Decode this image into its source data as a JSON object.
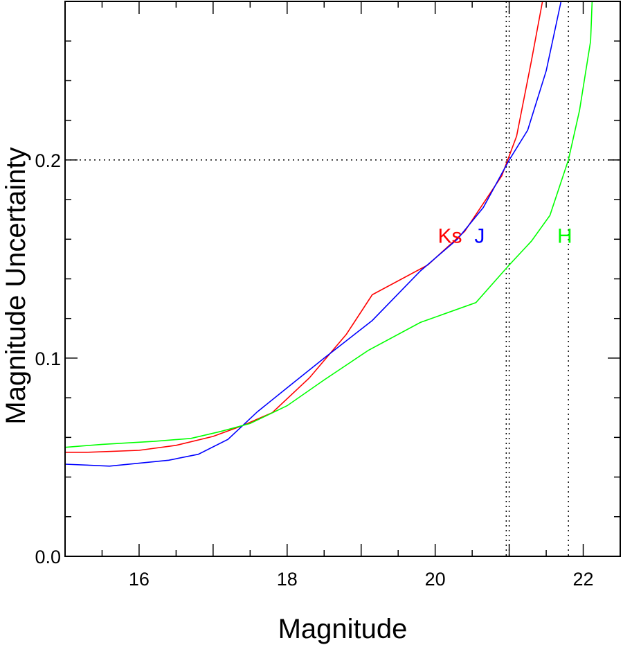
{
  "chart_data": {
    "type": "line",
    "title": "",
    "xlabel": "Magnitude",
    "ylabel": "Magnitude Uncertainty",
    "xlim": [
      15.0,
      22.5
    ],
    "ylim": [
      0.0,
      0.28
    ],
    "grid": false,
    "x_ticks_major": [
      16,
      17,
      18,
      19,
      20,
      21,
      22
    ],
    "x_tick_labels": [
      "16",
      "",
      "18",
      "",
      "20",
      "",
      "22"
    ],
    "x_ticks_minor_step": 0.5,
    "y_ticks_major": [
      0.0,
      0.1,
      0.2
    ],
    "y_tick_labels": [
      "0.0",
      "0.1",
      "0.2"
    ],
    "y_ticks_minor_step": 0.02,
    "series": [
      {
        "name": "Ks",
        "color": "#ff0000",
        "label_at": [
          20.2,
          0.162
        ],
        "points": [
          [
            15.0,
            0.0525
          ],
          [
            15.3,
            0.0525
          ],
          [
            16.0,
            0.0535
          ],
          [
            16.5,
            0.056
          ],
          [
            17.0,
            0.0605
          ],
          [
            17.4,
            0.066
          ],
          [
            17.8,
            0.0725
          ],
          [
            18.3,
            0.09
          ],
          [
            18.8,
            0.112
          ],
          [
            19.15,
            0.132
          ],
          [
            19.9,
            0.147
          ],
          [
            20.4,
            0.164
          ],
          [
            20.9,
            0.192
          ],
          [
            21.1,
            0.212
          ],
          [
            21.3,
            0.25
          ],
          [
            21.45,
            0.28
          ]
        ]
      },
      {
        "name": "J",
        "color": "#0000ff",
        "label_at": [
          20.6,
          0.162
        ],
        "points": [
          [
            15.0,
            0.0465
          ],
          [
            15.6,
            0.0455
          ],
          [
            16.4,
            0.0485
          ],
          [
            16.8,
            0.0515
          ],
          [
            17.2,
            0.059
          ],
          [
            17.6,
            0.073
          ],
          [
            18.0,
            0.085
          ],
          [
            18.5,
            0.1
          ],
          [
            19.15,
            0.119
          ],
          [
            19.8,
            0.144
          ],
          [
            20.3,
            0.16
          ],
          [
            20.65,
            0.176
          ],
          [
            21.0,
            0.2
          ],
          [
            21.25,
            0.215
          ],
          [
            21.5,
            0.245
          ],
          [
            21.7,
            0.28
          ]
        ]
      },
      {
        "name": "H",
        "color": "#00ff00",
        "label_at": [
          21.75,
          0.162
        ],
        "points": [
          [
            15.0,
            0.055
          ],
          [
            15.5,
            0.0565
          ],
          [
            16.2,
            0.058
          ],
          [
            16.7,
            0.0595
          ],
          [
            17.1,
            0.063
          ],
          [
            17.5,
            0.067
          ],
          [
            18.0,
            0.076
          ],
          [
            18.5,
            0.089
          ],
          [
            19.1,
            0.104
          ],
          [
            19.8,
            0.118
          ],
          [
            20.55,
            0.128
          ],
          [
            21.0,
            0.147
          ],
          [
            21.3,
            0.159
          ],
          [
            21.55,
            0.172
          ],
          [
            21.8,
            0.2
          ],
          [
            21.95,
            0.225
          ],
          [
            22.1,
            0.26
          ],
          [
            22.12,
            0.28
          ]
        ]
      }
    ],
    "reference_lines": {
      "horizontal": [
        0.2
      ],
      "vertical": [
        20.96,
        21.0,
        21.8
      ],
      "style": "dotted"
    }
  }
}
